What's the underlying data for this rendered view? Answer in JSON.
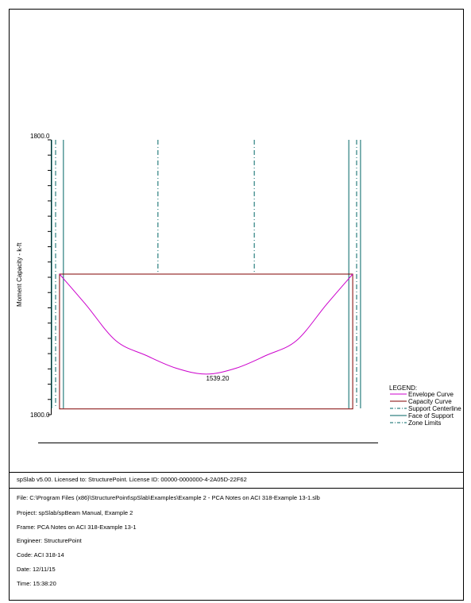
{
  "footer": {
    "license": "spSlab v5.00. Licensed to: StructurePoint. License ID: 00000-0000000-4-2A05D-22F62",
    "file": "File: C:\\Program Files (x86)\\StructurePoint\\spSlab\\Examples\\Example 2 - PCA Notes on ACI 318-Example 13-1.slb",
    "project": "Project: spSlab/spBeam Manual, Example 2",
    "frame": "Frame: PCA Notes on ACI 318-Example 13-1",
    "engineer": "Engineer: StructurePoint",
    "code": "Code: ACI 318-14",
    "date": "Date: 12/11/15",
    "time": "Time: 15:38:20"
  },
  "chart_data": {
    "type": "line",
    "ylabel": "Moment Capacity - k-ft",
    "y_top_label": "1800.0",
    "y_bottom_label": "1800.0",
    "ylim": [
      0,
      1800
    ],
    "xlim": [
      0,
      1
    ],
    "y_tick_count": 19,
    "annotation": "1539.20",
    "legend": {
      "title": "LEGEND:",
      "placement": "right",
      "items": [
        {
          "label": "Envelope Curve",
          "style": "solid",
          "color": "#cc00cc"
        },
        {
          "label": "Capacity Curve",
          "style": "solid",
          "color": "#800000"
        },
        {
          "label": "Support Centerline",
          "style": "dashdot",
          "color": "#006666"
        },
        {
          "label": "Face of Support",
          "style": "solid",
          "color": "#006666"
        },
        {
          "label": "Zone Limits",
          "style": "dashdot",
          "color": "#006666"
        }
      ]
    },
    "capacity_curve": {
      "x_start": 0.013,
      "x_end": 0.987,
      "y_top": 900,
      "y_bottom": 37
    },
    "envelope_curve": {
      "x": [
        0.013,
        0.1,
        0.2,
        0.3,
        0.4,
        0.5,
        0.6,
        0.7,
        0.8,
        0.9,
        0.987
      ],
      "y": [
        900,
        706,
        474,
        380,
        298,
        260,
        298,
        380,
        474,
        706,
        900
      ]
    },
    "support_centerlines": [
      0.0,
      1.0
    ],
    "faces_of_support": [
      0.026,
      0.974
    ],
    "zone_limits": [
      0.34,
      0.66
    ]
  }
}
